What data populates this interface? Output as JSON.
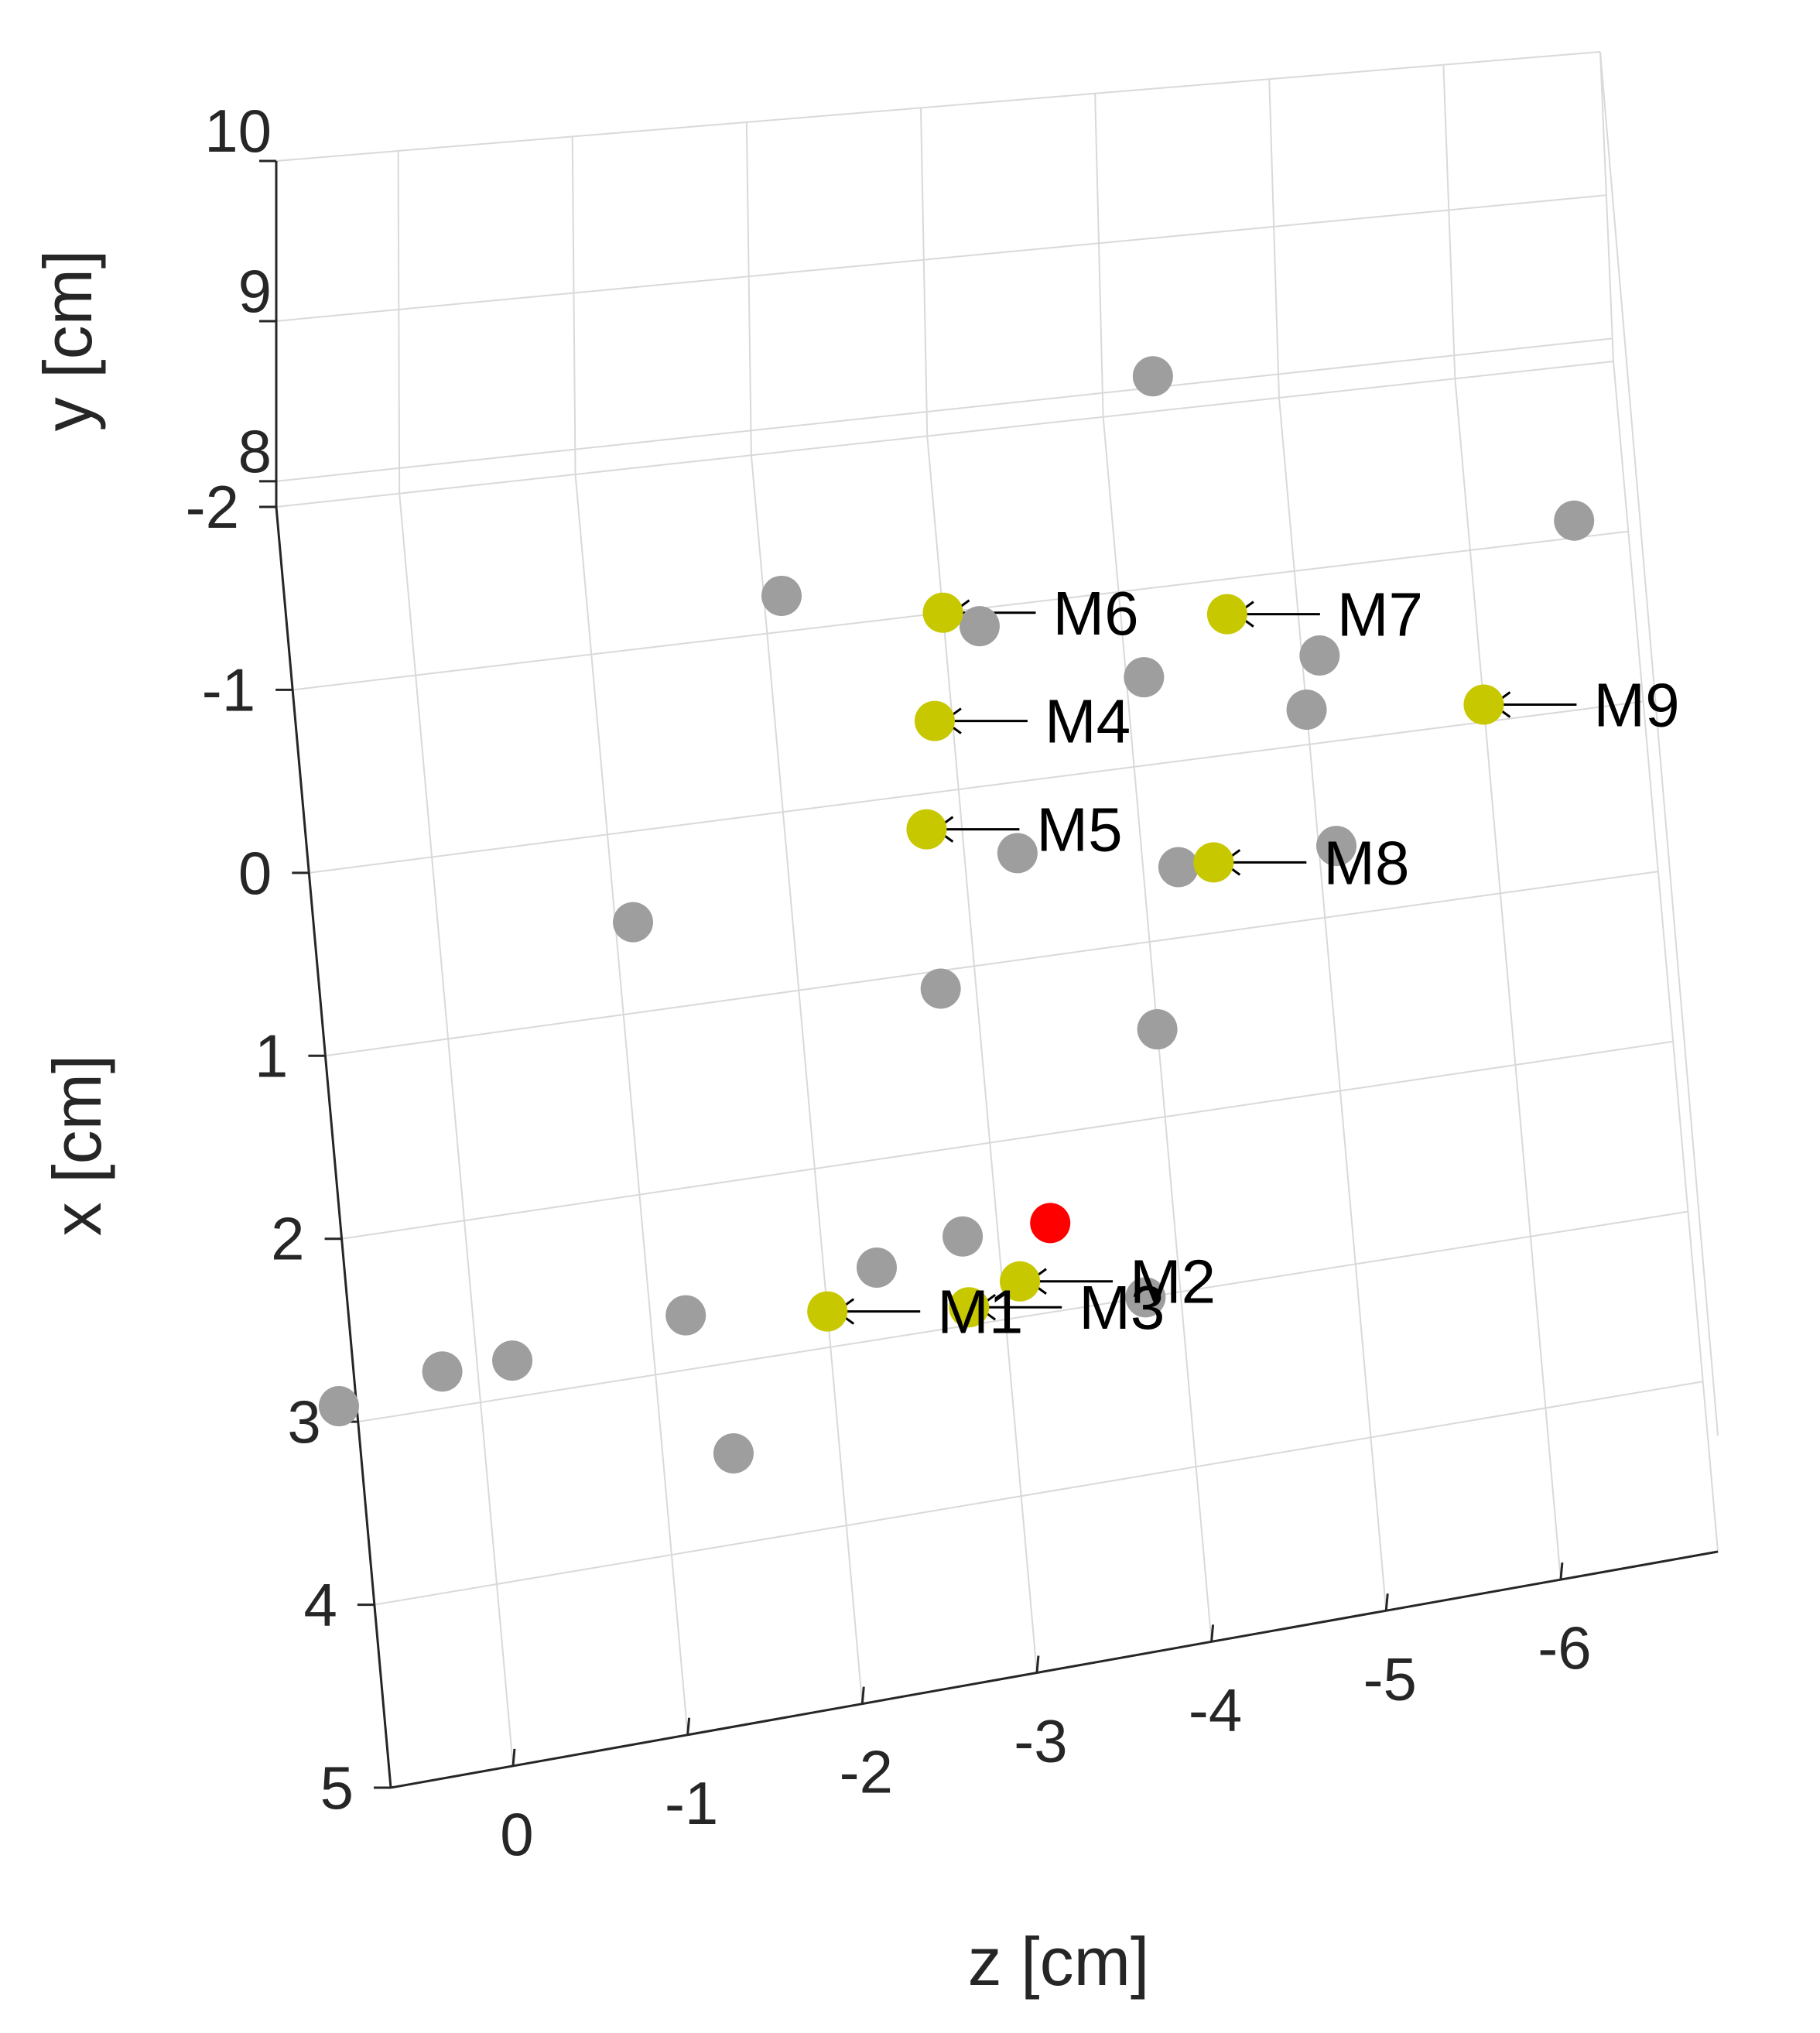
{
  "chart_data": {
    "type": "scatter",
    "projection": "3d-view",
    "grid": true,
    "ylabel": "y [cm]",
    "xlabel": "x [cm]",
    "zlabel": "z [cm]",
    "y_ticks": [
      "8",
      "9",
      "10"
    ],
    "x_ticks": [
      "-2",
      "-1",
      "0",
      "1",
      "2",
      "3",
      "4",
      "5"
    ],
    "z_ticks": [
      "0",
      "-1",
      "-2",
      "-3",
      "-4",
      "-5",
      "-6"
    ],
    "colors": {
      "gray_point": "#9e9e9e",
      "labeled_point": "#c8c800",
      "reference_point": "#ff0000",
      "grid": "#d9d9d9",
      "axis": "#262626"
    },
    "gray_points": [
      {
        "z": -4.3,
        "x": -2.2
      },
      {
        "z": -6.6,
        "x": -1.1
      },
      {
        "z": -2.1,
        "x": -1.2
      },
      {
        "z": -3.2,
        "x": -0.9
      },
      {
        "z": -4.1,
        "x": -0.5
      },
      {
        "z": -5.1,
        "x": -0.5
      },
      {
        "z": -5.0,
        "x": -0.2
      },
      {
        "z": -1.1,
        "x": 0.5
      },
      {
        "z": -3.3,
        "x": 0.4
      },
      {
        "z": -4.2,
        "x": 0.6
      },
      {
        "z": -5.1,
        "x": 0.6
      },
      {
        "z": -2.8,
        "x": 1.1
      },
      {
        "z": -4.0,
        "x": 1.5
      },
      {
        "z": -2.3,
        "x": 2.6
      },
      {
        "z": -2.8,
        "x": 2.5
      },
      {
        "z": -1.2,
        "x": 2.7
      },
      {
        "z": 0.2,
        "x": 2.8
      },
      {
        "z": -0.2,
        "x": 2.8
      },
      {
        "z": 0.8,
        "x": 2.9
      },
      {
        "z": -3.8,
        "x": 3.0
      },
      {
        "z": -1.4,
        "x": 3.5
      }
    ],
    "reference_point": {
      "z": -3.3,
      "x": 2.5
    },
    "labeled_points": [
      {
        "label": "M1",
        "z": -2.0,
        "x": 2.8
      },
      {
        "label": "M2",
        "z": -3.1,
        "x": 2.8
      },
      {
        "label": "M3",
        "z": -2.8,
        "x": 2.9
      },
      {
        "label": "M4",
        "z": -2.9,
        "x": -0.4
      },
      {
        "label": "M5",
        "z": -2.8,
        "x": 0.2
      },
      {
        "label": "M6",
        "z": -3.0,
        "x": -1.0
      },
      {
        "label": "M7",
        "z": -4.6,
        "x": -0.8
      },
      {
        "label": "M8",
        "z": -4.4,
        "x": 0.6
      },
      {
        "label": "M9",
        "z": -6.0,
        "x": -0.1
      }
    ]
  }
}
